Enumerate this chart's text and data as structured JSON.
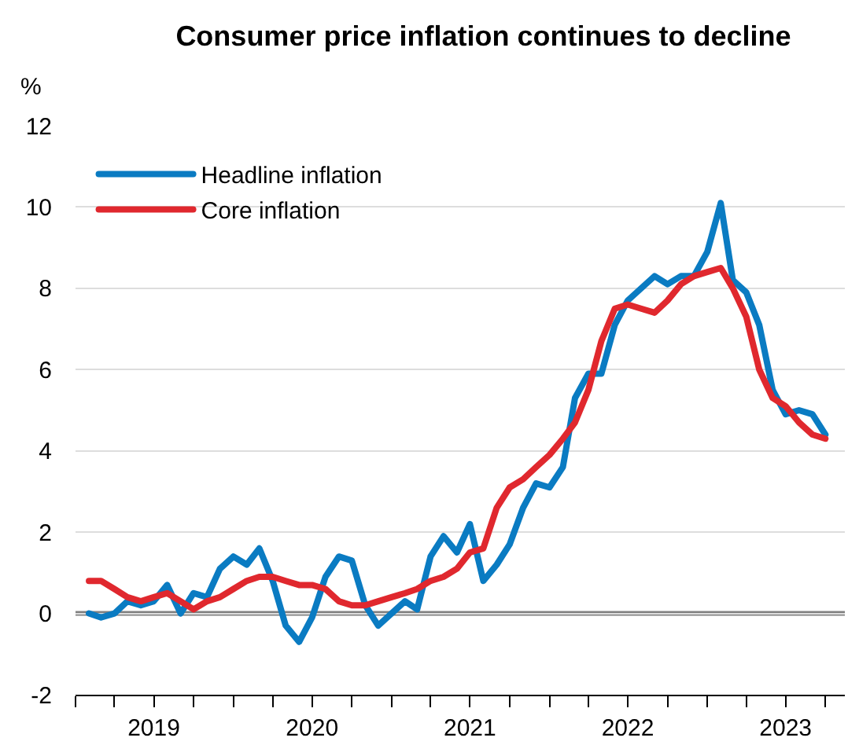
{
  "chart_data": {
    "type": "line",
    "title": "Consumer price inflation continues to decline",
    "ylabel": "%",
    "x": [
      "2019-02",
      "2019-03",
      "2019-04",
      "2019-05",
      "2019-06",
      "2019-07",
      "2019-08",
      "2019-09",
      "2019-10",
      "2019-11",
      "2019-12",
      "2020-01",
      "2020-02",
      "2020-03",
      "2020-04",
      "2020-05",
      "2020-06",
      "2020-07",
      "2020-08",
      "2020-09",
      "2020-10",
      "2020-11",
      "2020-12",
      "2021-01",
      "2021-02",
      "2021-03",
      "2021-04",
      "2021-05",
      "2021-06",
      "2021-07",
      "2021-08",
      "2021-09",
      "2021-10",
      "2021-11",
      "2021-12",
      "2022-01",
      "2022-02",
      "2022-03",
      "2022-04",
      "2022-05",
      "2022-06",
      "2022-07",
      "2022-08",
      "2022-09",
      "2022-10",
      "2022-11",
      "2022-12",
      "2023-01",
      "2023-02",
      "2023-03",
      "2023-04",
      "2023-05",
      "2023-06",
      "2023-07",
      "2023-08",
      "2023-09",
      "2023-10"
    ],
    "series": [
      {
        "name": "Headline inflation",
        "color": "#0a7bc2",
        "values": [
          0.0,
          -0.1,
          0.0,
          0.3,
          0.2,
          0.3,
          0.7,
          0.0,
          0.5,
          0.4,
          1.1,
          1.4,
          1.2,
          1.6,
          0.8,
          -0.3,
          -0.7,
          -0.1,
          0.9,
          1.4,
          1.3,
          0.2,
          -0.3,
          0.0,
          0.3,
          0.1,
          1.4,
          1.9,
          1.5,
          2.2,
          0.8,
          1.2,
          1.7,
          2.6,
          3.2,
          3.1,
          3.6,
          5.3,
          5.9,
          5.9,
          7.1,
          7.7,
          8.0,
          8.3,
          8.1,
          8.3,
          8.3,
          8.9,
          10.1,
          8.2,
          7.9,
          7.1,
          5.5,
          4.9,
          5.0,
          4.9,
          4.4
        ]
      },
      {
        "name": "Core inflation",
        "color": "#e0282e",
        "values": [
          0.8,
          0.8,
          0.6,
          0.4,
          0.3,
          0.4,
          0.5,
          0.3,
          0.1,
          0.3,
          0.4,
          0.6,
          0.8,
          0.9,
          0.9,
          0.8,
          0.7,
          0.7,
          0.6,
          0.3,
          0.2,
          0.2,
          0.3,
          0.4,
          0.5,
          0.6,
          0.8,
          0.9,
          1.1,
          1.5,
          1.6,
          2.6,
          3.1,
          3.3,
          3.6,
          3.9,
          4.3,
          4.7,
          5.5,
          6.7,
          7.5,
          7.6,
          7.5,
          7.4,
          7.7,
          8.1,
          8.3,
          8.4,
          8.5,
          8.0,
          7.3,
          6.0,
          5.3,
          5.1,
          4.7,
          4.4,
          4.3
        ]
      }
    ],
    "xlim": [
      "2019-01-01",
      "2023-11-15"
    ],
    "xticks": [
      {
        "value": "2019-01-01",
        "label": null
      },
      {
        "value": "2019-04-01",
        "label": null
      },
      {
        "value": "2019-07-01",
        "label": "2019"
      },
      {
        "value": "2019-10-01",
        "label": null
      },
      {
        "value": "2020-01-01",
        "label": null
      },
      {
        "value": "2020-04-01",
        "label": null
      },
      {
        "value": "2020-07-01",
        "label": "2020"
      },
      {
        "value": "2020-10-01",
        "label": null
      },
      {
        "value": "2021-01-01",
        "label": null
      },
      {
        "value": "2021-04-01",
        "label": null
      },
      {
        "value": "2021-07-01",
        "label": "2021"
      },
      {
        "value": "2021-10-01",
        "label": null
      },
      {
        "value": "2022-01-01",
        "label": null
      },
      {
        "value": "2022-04-01",
        "label": null
      },
      {
        "value": "2022-07-01",
        "label": "2022"
      },
      {
        "value": "2022-10-01",
        "label": null
      },
      {
        "value": "2023-01-01",
        "label": null
      },
      {
        "value": "2023-04-01",
        "label": null
      },
      {
        "value": "2023-07-01",
        "label": "2023"
      },
      {
        "value": "2023-10-01",
        "label": null
      }
    ],
    "ylim": [
      -2,
      12
    ],
    "yticks": [
      -2,
      0,
      2,
      4,
      6,
      8,
      10,
      12
    ],
    "ref_lines": [
      {
        "axis": "y",
        "value": 0,
        "color": "#808080"
      }
    ],
    "grid": "y",
    "legend": "top left",
    "marker": "none",
    "line_style": "solid"
  }
}
